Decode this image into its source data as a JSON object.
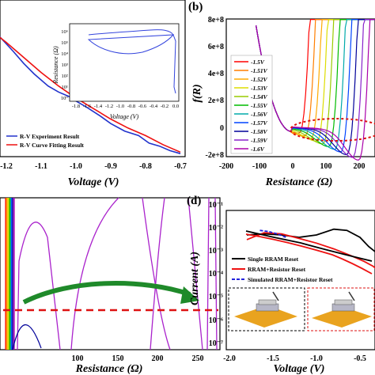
{
  "panels": {
    "a": {
      "label": "",
      "xlabel": "Voltage (V)",
      "xticks": [
        "-1.2",
        "-1.1",
        "-1.0",
        "-0.9",
        "-0.8",
        "-0.7"
      ],
      "legend": [
        "R-V Experiment Result",
        "R-V Curve Fitting Result"
      ],
      "colors": {
        "experiment": "#2233cc",
        "fit": "#ee1111"
      },
      "inset": {
        "ylabel": "Resistance (Ω)",
        "xlabel": "Voltage (V)",
        "xticks": [
          "-1.8",
          "-1.6",
          "-1.4",
          "-1.2",
          "-1.0",
          "-0.8",
          "-0.6",
          "-0.4",
          "-0.2",
          "0.0"
        ],
        "yticks": [
          "10⁶",
          "10⁵",
          "10⁴",
          "10³",
          "10²",
          "10¹",
          "10⁰"
        ]
      }
    },
    "b": {
      "label": "(b)",
      "ylabel": "f(R)",
      "xlabel": "Resistance (Ω)",
      "yticks": [
        "8e+8",
        "6e+8",
        "4e+8",
        "2e+8",
        "0",
        "-2e+8"
      ],
      "xticks": [
        "-200",
        "-100",
        "0",
        "100",
        "200"
      ],
      "legend": [
        "-1.5V",
        "-1.51V",
        "-1.52V",
        "-1.53V",
        "-1.54V",
        "-1.55V",
        "-1.56V",
        "-1.57V",
        "-1.58V",
        "-1.59V",
        "-1.6V"
      ]
    },
    "c": {
      "xlabel": "Resistance (Ω)",
      "xticks": [
        "100",
        "150",
        "200",
        "250"
      ]
    },
    "d": {
      "label": "(d)",
      "ylabel": "Current (A)",
      "xlabel": "Voltage (V)",
      "yticks": [
        "10⁻¹",
        "10⁻²",
        "10⁻³",
        "10⁻⁴",
        "10⁻⁵",
        "10⁻⁶",
        "10⁻⁷"
      ],
      "xticks": [
        "-2.0",
        "-1.5",
        "-1.0",
        "-0.5"
      ],
      "legend": [
        "Single RRAM Reset",
        "RRAM+Resistor Reset",
        "Simulated RRAM+Resistor Reset"
      ]
    }
  },
  "chart_data": [
    {
      "type": "line",
      "panel": "a",
      "xlabel": "Voltage (V)",
      "xlim": [
        -1.25,
        -0.7
      ],
      "series": [
        {
          "name": "R-V Experiment Result",
          "color": "#2233cc",
          "x": [
            -1.25,
            -1.22,
            -1.18,
            -1.15,
            -1.12,
            -1.08,
            -1.05,
            -1.02,
            -1.0,
            -0.97,
            -0.93,
            -0.9,
            -0.86,
            -0.82,
            -0.79,
            -0.76,
            -0.73,
            -0.7
          ],
          "y": [
            0.88,
            0.8,
            0.7,
            0.62,
            0.55,
            0.47,
            0.43,
            0.4,
            0.37,
            0.33,
            0.27,
            0.22,
            0.17,
            0.14,
            0.09,
            0.07,
            0.04,
            0.02
          ]
        },
        {
          "name": "R-V Curve Fitting Result",
          "color": "#ee1111",
          "x": [
            -1.25,
            -1.2,
            -1.15,
            -1.1,
            -1.05,
            -1.0,
            -0.95,
            -0.9,
            -0.85,
            -0.8,
            -0.75,
            -0.7
          ],
          "y": [
            0.85,
            0.76,
            0.66,
            0.56,
            0.47,
            0.39,
            0.32,
            0.25,
            0.19,
            0.14,
            0.08,
            0.03
          ]
        }
      ]
    },
    {
      "type": "line",
      "panel": "b",
      "ylabel": "f(R)",
      "xlabel": "Resistance (Ω)",
      "xlim": [
        -200,
        250
      ],
      "ylim": [
        -200000000.0,
        800000000.0
      ],
      "series": [
        {
          "name": "-1.5V",
          "color": "#ff0000",
          "v": -1.5
        },
        {
          "name": "-1.51V",
          "color": "#ff7f00",
          "v": -1.51
        },
        {
          "name": "-1.52V",
          "color": "#ffaa00",
          "v": -1.52
        },
        {
          "name": "-1.53V",
          "color": "#dddd00",
          "v": -1.53
        },
        {
          "name": "-1.54V",
          "color": "#99cc00",
          "v": -1.54
        },
        {
          "name": "-1.55V",
          "color": "#00bb00",
          "v": -1.55
        },
        {
          "name": "-1.56V",
          "color": "#00aaaa",
          "v": -1.56
        },
        {
          "name": "-1.57V",
          "color": "#0044ff",
          "v": -1.57
        },
        {
          "name": "-1.58V",
          "color": "#000099",
          "v": -1.58
        },
        {
          "name": "-1.59V",
          "color": "#8822cc",
          "v": -1.59
        },
        {
          "name": "-1.6V",
          "color": "#aa00aa",
          "v": -1.6
        }
      ]
    },
    {
      "type": "line",
      "panel": "c",
      "xlabel": "Resistance (Ω)",
      "xlim": [
        60,
        275
      ],
      "annotation": {
        "threshold_line": true,
        "arrow": "green"
      }
    },
    {
      "type": "line",
      "panel": "d",
      "ylabel": "Current (A)",
      "xlabel": "Voltage (V)",
      "xlim": [
        -2.0,
        -0.3
      ],
      "ylim_log10": [
        -7,
        -1
      ],
      "series": [
        {
          "name": "Single RRAM Reset",
          "color": "#000000",
          "x": [
            -1.8,
            -1.6,
            -1.4,
            -1.2,
            -1.0,
            -0.8,
            -0.65,
            -0.5,
            -0.4,
            -0.3
          ],
          "y_log10": [
            -2.2,
            -2.15,
            -2.2,
            -2.3,
            -2.2,
            -1.95,
            -2.0,
            -2.3,
            -2.7,
            -3.0
          ]
        },
        {
          "name": "RRAM+Resistor Reset",
          "color": "#ee1111",
          "x": [
            -1.8,
            -1.6,
            -1.4,
            -1.2,
            -1.0,
            -0.8,
            -0.6,
            -0.45,
            -0.35,
            -0.3
          ],
          "y_log10": [
            -2.4,
            -2.1,
            -2.15,
            -2.35,
            -2.55,
            -2.8,
            -3.1,
            -3.35,
            -3.55,
            -3.7
          ]
        },
        {
          "name": "Simulated RRAM+Resistor Reset",
          "color": "#2222dd",
          "x": [
            -1.65,
            -1.55,
            -1.45,
            -1.35
          ],
          "y_log10": [
            -2.0,
            -2.05,
            -2.15,
            -2.3
          ]
        }
      ]
    }
  ]
}
